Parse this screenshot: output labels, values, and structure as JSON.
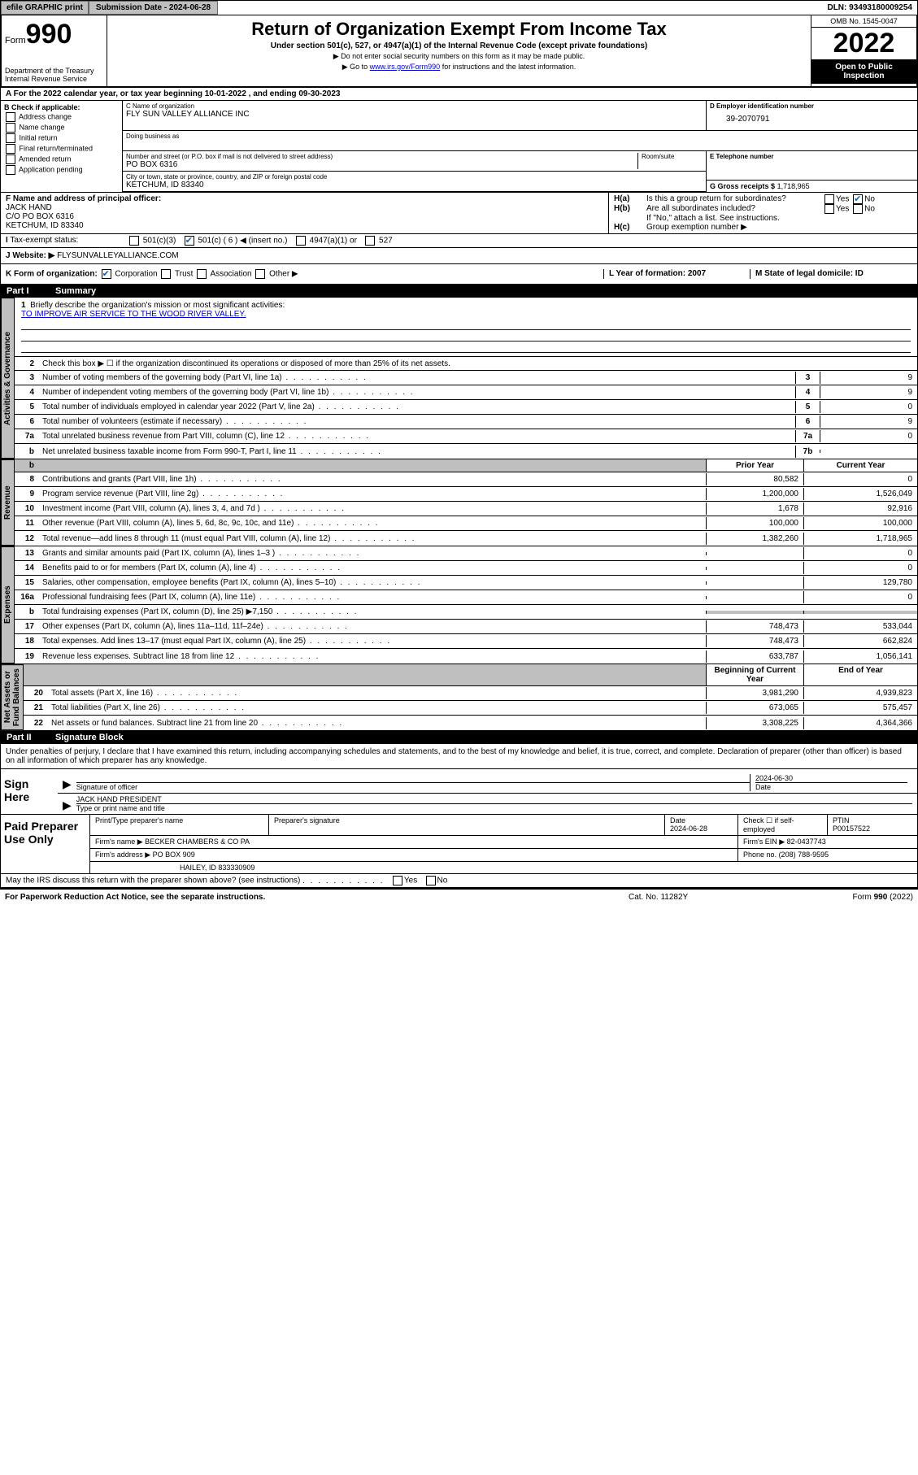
{
  "top": {
    "efile": "efile GRAPHIC print",
    "subdate_lbl": "Submission Date - 2024-06-28",
    "dln": "DLN: 93493180009254"
  },
  "header": {
    "form_prefix": "Form",
    "form_num": "990",
    "dept": "Department of the Treasury\nInternal Revenue Service",
    "title": "Return of Organization Exempt From Income Tax",
    "subtitle": "Under section 501(c), 527, or 4947(a)(1) of the Internal Revenue Code (except private foundations)",
    "inst1": "▶ Do not enter social security numbers on this form as it may be made public.",
    "inst2_pre": "▶ Go to ",
    "inst2_link": "www.irs.gov/Form990",
    "inst2_post": " for instructions and the latest information.",
    "omb": "OMB No. 1545-0047",
    "year": "2022",
    "open": "Open to Public Inspection"
  },
  "rowA": "A For the 2022 calendar year, or tax year beginning 10-01-2022    , and ending 09-30-2023",
  "colB": {
    "hdr": "B Check if applicable:",
    "items": [
      "Address change",
      "Name change",
      "Initial return",
      "Final return/terminated",
      "Amended return",
      "Application pending"
    ]
  },
  "colC": {
    "name_lbl": "C Name of organization",
    "name": "FLY SUN VALLEY ALLIANCE INC",
    "dba_lbl": "Doing business as",
    "street_lbl": "Number and street (or P.O. box if mail is not delivered to street address)",
    "street": "PO BOX 6316",
    "suite_lbl": "Room/suite",
    "city_lbl": "City or town, state or province, country, and ZIP or foreign postal code",
    "city": "KETCHUM, ID  83340"
  },
  "colD": {
    "lbl": "D Employer identification number",
    "val": "39-2070791"
  },
  "colE": {
    "lbl": "E Telephone number",
    "val": ""
  },
  "colG": {
    "lbl": "G Gross receipts $",
    "val": "1,718,965"
  },
  "colF": {
    "lbl": "F Name and address of principal officer:",
    "name": "JACK HAND",
    "addr1": "C/O PO BOX 6316",
    "addr2": "KETCHUM, ID  83340"
  },
  "colH": {
    "ha": "Is this a group return for subordinates?",
    "hb": "Are all subordinates included?",
    "hb_note": "If \"No,\" attach a list. See instructions.",
    "hc": "Group exemption number ▶"
  },
  "rowI": {
    "lbl": "Tax-exempt status:",
    "opts": [
      "501(c)(3)",
      "501(c) ( 6 ) ◀ (insert no.)",
      "4947(a)(1) or",
      "527"
    ]
  },
  "rowJ": {
    "lbl": "J  Website: ▶",
    "val": "FLYSUNVALLEYALLIANCE.COM"
  },
  "rowK": {
    "lbl": "K Form of organization:",
    "opts": [
      "Corporation",
      "Trust",
      "Association",
      "Other ▶"
    ],
    "L": "L Year of formation: 2007",
    "M": "M State of legal domicile: ID"
  },
  "part1": {
    "num": "Part I",
    "title": "Summary"
  },
  "mission": {
    "lbl": "Briefly describe the organization's mission or most significant activities:",
    "txt": "TO IMPROVE AIR SERVICE TO THE WOOD RIVER VALLEY."
  },
  "line2": "Check this box ▶ ☐  if the organization discontinued its operations or disposed of more than 25% of its net assets.",
  "gov": [
    {
      "n": "3",
      "t": "Number of voting members of the governing body (Part VI, line 1a)",
      "k": "3",
      "v": "9"
    },
    {
      "n": "4",
      "t": "Number of independent voting members of the governing body (Part VI, line 1b)",
      "k": "4",
      "v": "9"
    },
    {
      "n": "5",
      "t": "Total number of individuals employed in calendar year 2022 (Part V, line 2a)",
      "k": "5",
      "v": "0"
    },
    {
      "n": "6",
      "t": "Total number of volunteers (estimate if necessary)",
      "k": "6",
      "v": "9"
    },
    {
      "n": "7a",
      "t": "Total unrelated business revenue from Part VIII, column (C), line 12",
      "k": "7a",
      "v": "0"
    },
    {
      "n": "b",
      "t": "Net unrelated business taxable income from Form 990-T, Part I, line 11",
      "k": "7b",
      "v": ""
    }
  ],
  "cols": {
    "prior": "Prior Year",
    "current": "Current Year",
    "begin": "Beginning of Current Year",
    "end": "End of Year"
  },
  "rev": [
    {
      "n": "8",
      "t": "Contributions and grants (Part VIII, line 1h)",
      "p": "80,582",
      "c": "0"
    },
    {
      "n": "9",
      "t": "Program service revenue (Part VIII, line 2g)",
      "p": "1,200,000",
      "c": "1,526,049"
    },
    {
      "n": "10",
      "t": "Investment income (Part VIII, column (A), lines 3, 4, and 7d )",
      "p": "1,678",
      "c": "92,916"
    },
    {
      "n": "11",
      "t": "Other revenue (Part VIII, column (A), lines 5, 6d, 8c, 9c, 10c, and 11e)",
      "p": "100,000",
      "c": "100,000"
    },
    {
      "n": "12",
      "t": "Total revenue—add lines 8 through 11 (must equal Part VIII, column (A), line 12)",
      "p": "1,382,260",
      "c": "1,718,965"
    }
  ],
  "exp": [
    {
      "n": "13",
      "t": "Grants and similar amounts paid (Part IX, column (A), lines 1–3 )",
      "p": "",
      "c": "0"
    },
    {
      "n": "14",
      "t": "Benefits paid to or for members (Part IX, column (A), line 4)",
      "p": "",
      "c": "0"
    },
    {
      "n": "15",
      "t": "Salaries, other compensation, employee benefits (Part IX, column (A), lines 5–10)",
      "p": "",
      "c": "129,780"
    },
    {
      "n": "16a",
      "t": "Professional fundraising fees (Part IX, column (A), line 11e)",
      "p": "",
      "c": "0"
    },
    {
      "n": "b",
      "t": "Total fundraising expenses (Part IX, column (D), line 25) ▶7,150",
      "p": "gray",
      "c": "gray"
    },
    {
      "n": "17",
      "t": "Other expenses (Part IX, column (A), lines 11a–11d, 11f–24e)",
      "p": "748,473",
      "c": "533,044"
    },
    {
      "n": "18",
      "t": "Total expenses. Add lines 13–17 (must equal Part IX, column (A), line 25)",
      "p": "748,473",
      "c": "662,824"
    },
    {
      "n": "19",
      "t": "Revenue less expenses. Subtract line 18 from line 12",
      "p": "633,787",
      "c": "1,056,141"
    }
  ],
  "net": [
    {
      "n": "20",
      "t": "Total assets (Part X, line 16)",
      "p": "3,981,290",
      "c": "4,939,823"
    },
    {
      "n": "21",
      "t": "Total liabilities (Part X, line 26)",
      "p": "673,065",
      "c": "575,457"
    },
    {
      "n": "22",
      "t": "Net assets or fund balances. Subtract line 21 from line 20",
      "p": "3,308,225",
      "c": "4,364,366"
    }
  ],
  "sides": {
    "gov": "Activities & Governance",
    "rev": "Revenue",
    "exp": "Expenses",
    "net": "Net Assets or\nFund Balances"
  },
  "part2": {
    "num": "Part II",
    "title": "Signature Block"
  },
  "sig": {
    "note": "Under penalties of perjury, I declare that I have examined this return, including accompanying schedules and statements, and to the best of my knowledge and belief, it is true, correct, and complete. Declaration of preparer (other than officer) is based on all information of which preparer has any knowledge.",
    "here": "Sign Here",
    "officer_lbl": "Signature of officer",
    "date": "2024-06-30",
    "date_lbl": "Date",
    "name": "JACK HAND PRESIDENT",
    "name_lbl": "Type or print name and title"
  },
  "prep": {
    "title": "Paid Preparer Use Only",
    "h1": "Print/Type preparer's name",
    "h2": "Preparer's signature",
    "h3": "Date",
    "date": "2024-06-28",
    "h4": "Check ☐ if self-employed",
    "h5": "PTIN",
    "ptin": "P00157522",
    "firm_lbl": "Firm's name    ▶",
    "firm": "BECKER CHAMBERS & CO PA",
    "ein_lbl": "Firm's EIN ▶",
    "ein": "82-0437743",
    "addr_lbl": "Firm's address ▶",
    "addr1": "PO BOX 909",
    "addr2": "HAILEY, ID  833330909",
    "phone_lbl": "Phone no.",
    "phone": "(208) 788-9595"
  },
  "discuss": "May the IRS discuss this return with the preparer shown above? (see instructions)",
  "footer": {
    "l": "For Paperwork Reduction Act Notice, see the separate instructions.",
    "m": "Cat. No. 11282Y",
    "r": "Form 990 (2022)"
  }
}
